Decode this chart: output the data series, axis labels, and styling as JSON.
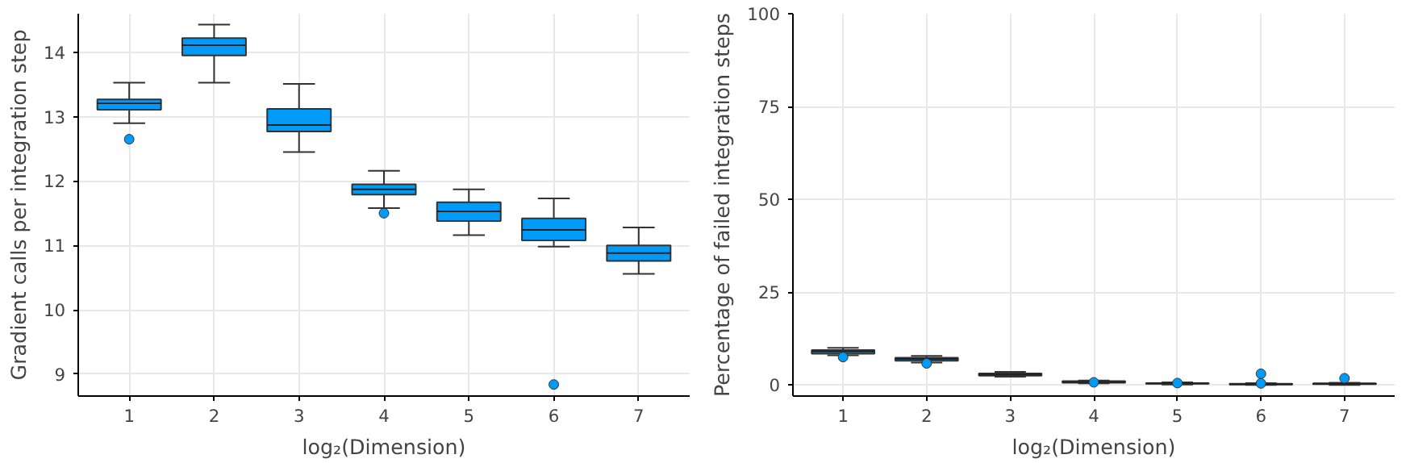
{
  "chart_data": [
    {
      "type": "box",
      "xlabel": "log₂(Dimension)",
      "ylabel": "Gradient calls per integration step",
      "categories": [
        "1",
        "2",
        "3",
        "4",
        "5",
        "6",
        "7"
      ],
      "color": "#009af9",
      "ylim": [
        8.66,
        14.6
      ],
      "yticks": [
        9,
        10,
        11,
        12,
        13,
        14
      ],
      "grid": true,
      "boxes": [
        {
          "low": 12.9,
          "q1": 13.11,
          "median": 13.21,
          "q3": 13.27,
          "high": 13.53,
          "outliers": [
            12.65
          ]
        },
        {
          "low": 13.53,
          "q1": 13.95,
          "median": 14.11,
          "q3": 14.22,
          "high": 14.43
        },
        {
          "low": 12.45,
          "q1": 12.77,
          "median": 12.87,
          "q3": 13.12,
          "high": 13.51
        },
        {
          "low": 11.58,
          "q1": 11.79,
          "median": 11.87,
          "q3": 11.95,
          "high": 12.16,
          "outliers": [
            11.5
          ]
        },
        {
          "low": 11.16,
          "q1": 11.38,
          "median": 11.53,
          "q3": 11.67,
          "high": 11.87
        },
        {
          "low": 10.98,
          "q1": 11.08,
          "median": 11.24,
          "q3": 11.42,
          "high": 11.73,
          "outliers": [
            8.84
          ]
        },
        {
          "low": 10.56,
          "q1": 10.76,
          "median": 10.88,
          "q3": 11.0,
          "high": 11.28
        }
      ]
    },
    {
      "type": "box",
      "xlabel": "log₂(Dimension)",
      "ylabel": "Percentage of failed integration steps",
      "categories": [
        "1",
        "2",
        "3",
        "4",
        "5",
        "6",
        "7"
      ],
      "color": "#009af9",
      "ylim": [
        -3,
        100
      ],
      "yticks": [
        0,
        25,
        50,
        75,
        100
      ],
      "grid": true,
      "boxes": [
        {
          "low": 8,
          "q1": 8.4,
          "median": 9,
          "q3": 9.4,
          "high": 10,
          "outliers": [
            7.5
          ]
        },
        {
          "low": 6,
          "q1": 6.5,
          "median": 7,
          "q3": 7.3,
          "high": 7.8,
          "outliers": [
            5.8
          ]
        },
        {
          "low": 2.2,
          "q1": 2.5,
          "median": 2.8,
          "q3": 3.1,
          "high": 3.5
        },
        {
          "low": 0.4,
          "q1": 0.6,
          "median": 0.8,
          "q3": 1.0,
          "high": 1.2,
          "outliers": [
            0.7
          ]
        },
        {
          "low": 0.1,
          "q1": 0.3,
          "median": 0.4,
          "q3": 0.5,
          "high": 0.7,
          "outliers": [
            0.5
          ]
        },
        {
          "low": 0,
          "q1": 0.1,
          "median": 0.2,
          "q3": 0.3,
          "high": 0.5,
          "outliers": [
            3.0,
            0.4
          ]
        },
        {
          "low": 0,
          "q1": 0.2,
          "median": 0.3,
          "q3": 0.4,
          "high": 0.6,
          "outliers": [
            1.8
          ]
        }
      ]
    }
  ]
}
